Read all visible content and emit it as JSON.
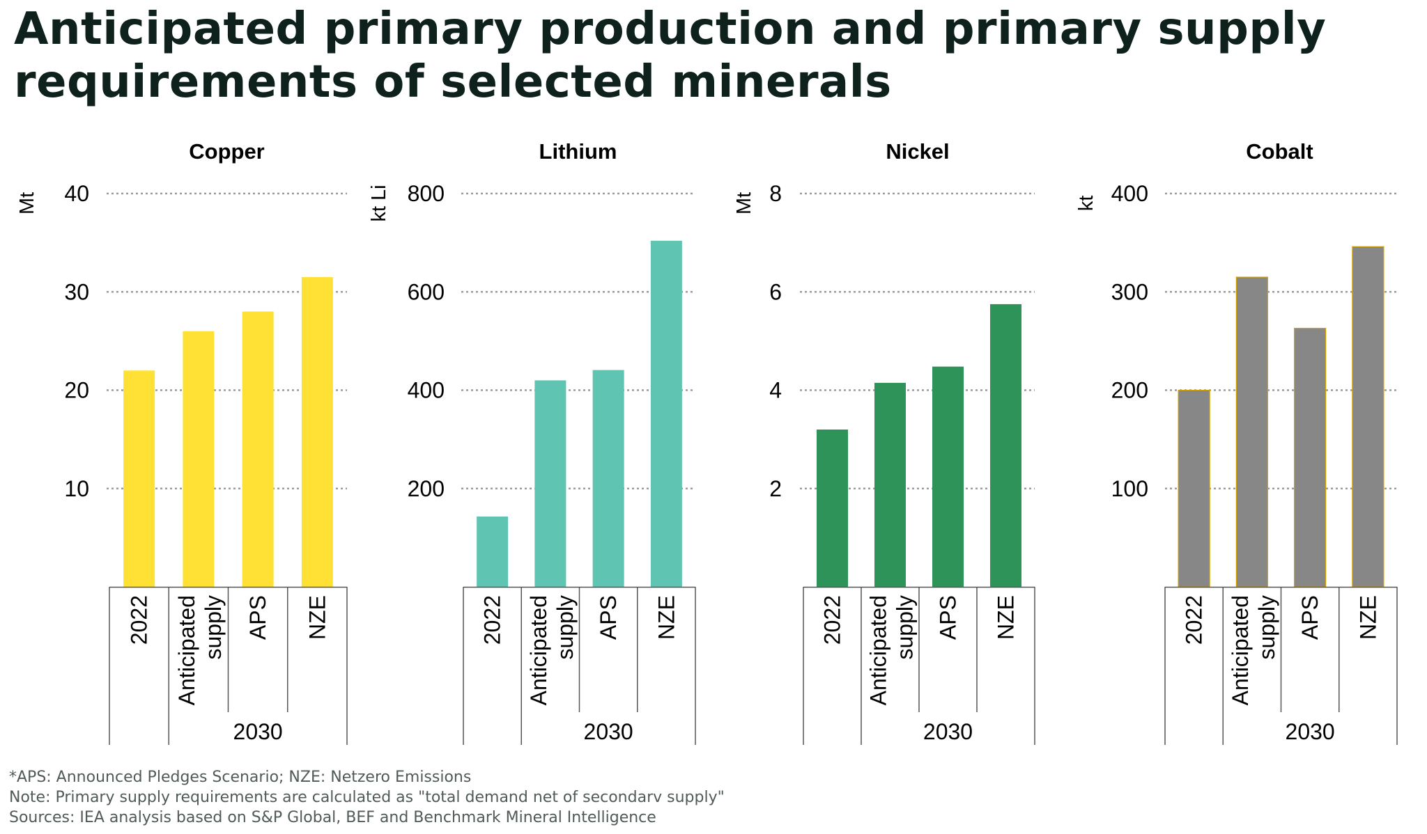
{
  "title": {
    "line1": "Anticipated primary production and primary supply",
    "line2": "requirements of selected minerals"
  },
  "chart_data": [
    {
      "type": "bar",
      "title": "Copper",
      "ylabel": "Mt",
      "categories": [
        "2022",
        "Anticipated supply",
        "APS",
        "NZE"
      ],
      "group_label": "2030",
      "values": [
        22,
        26,
        28,
        31.5
      ],
      "ylim": [
        0,
        40
      ],
      "yticks": [
        "10",
        "20",
        "30",
        "40"
      ],
      "ytick_values": [
        10,
        20,
        30,
        40
      ],
      "color": "#ffe135",
      "grid": true
    },
    {
      "type": "bar",
      "title": "Lithium",
      "ylabel": "kt Li",
      "categories": [
        "2022",
        "Anticipated supply",
        "APS",
        "NZE"
      ],
      "group_label": "2030",
      "values": [
        143,
        420,
        441,
        704
      ],
      "ylim": [
        0,
        800
      ],
      "yticks": [
        "200",
        "400",
        "600",
        "800"
      ],
      "ytick_values": [
        200,
        400,
        600,
        800
      ],
      "color": "#60c4b2",
      "grid": true
    },
    {
      "type": "bar",
      "title": "Nickel",
      "ylabel": "Mt",
      "categories": [
        "2022",
        "Anticipated supply",
        "APS",
        "NZE"
      ],
      "group_label": "2030",
      "values": [
        3.2,
        4.15,
        4.48,
        5.75
      ],
      "ylim": [
        0,
        8
      ],
      "yticks": [
        "2",
        "4",
        "6",
        "8"
      ],
      "ytick_values": [
        2,
        4,
        6,
        8
      ],
      "color": "#2e9358",
      "grid": true
    },
    {
      "type": "bar",
      "title": "Cobalt",
      "ylabel": "kt",
      "categories": [
        "2022",
        "Anticipated supply",
        "APS",
        "NZE"
      ],
      "group_label": "2030",
      "values": [
        200,
        315,
        263,
        346
      ],
      "ylim": [
        0,
        400
      ],
      "yticks": [
        "100",
        "200",
        "300",
        "400"
      ],
      "ytick_values": [
        100,
        200,
        300,
        400
      ],
      "color": "#878787",
      "grid": true
    }
  ],
  "footnotes": {
    "line1": "*APS: Announced Pledges Scenario; NZE: Netzero Emissions",
    "line2": "Note: Primary supply requirements are calculated as \"total demand net of secondarv supply\"",
    "line3": "Sources: IEA analysis based on S&P Global, BEF and Benchmark Mineral Intelligence"
  }
}
